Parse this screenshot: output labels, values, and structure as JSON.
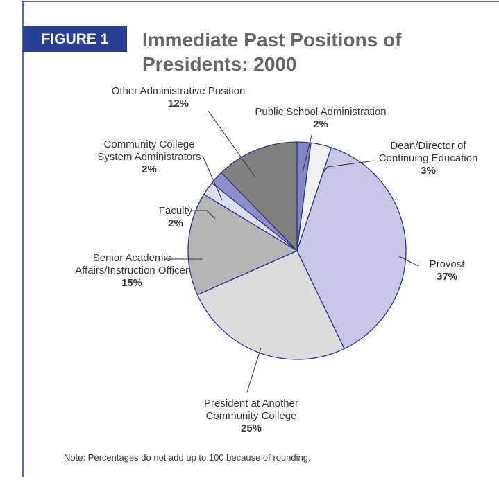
{
  "figure_label": "FIGURE 1",
  "chart_data": {
    "type": "pie",
    "title": "Immediate Past Positions of Presidents: 2000",
    "categories": [
      "Public School Administration",
      "Dean/Director of\nContinuing Education",
      "Provost",
      "President at Another\nCommunity College",
      "Senior Academic\nAffairs/Instruction Officer",
      "Faculty",
      "Community College\nSystem Administrators",
      "Other Administrative Position"
    ],
    "values": [
      2,
      3,
      37,
      25,
      15,
      2,
      2,
      12
    ],
    "value_labels": [
      "2%",
      "3%",
      "37%",
      "25%",
      "15%",
      "2%",
      "2%",
      "12%"
    ],
    "colors": [
      "#8585c6",
      "#f0f0f0",
      "#c9c7e5",
      "#dcdcdc",
      "#b5b5b5",
      "#dddcf0",
      "#8e8ec9",
      "#808080"
    ],
    "note": "Note: Percentages do not add up to 100 because of rounding."
  }
}
